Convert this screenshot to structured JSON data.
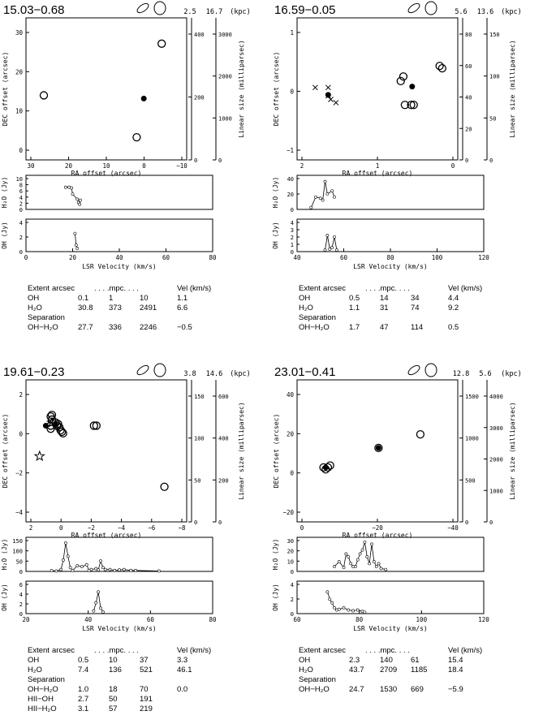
{
  "panels": [
    {
      "id": "p1",
      "title": "15.03−0.68",
      "dist": [
        "2.5",
        "16.7"
      ],
      "dist_unit": "(kpc)",
      "sky": {
        "xlabel": "RA offset (arcsec)",
        "ylabel": "DEC offset (arcsec)",
        "xlim": [
          30,
          -15
        ],
        "ylim": [
          -7,
          37
        ],
        "xticks": [
          "30",
          "20",
          "10",
          "0",
          "−10"
        ],
        "yticks": [
          "0",
          "10",
          "20",
          "30"
        ],
        "lin_label": "Linear size (milliparsec)",
        "lin_ticks_a": [
          "0",
          "200",
          "400"
        ],
        "lin_ticks_b": [
          "0",
          "1000",
          "2000",
          "3000"
        ]
      },
      "h2o_lab": "H₂O (Jy)",
      "oh_lab": "OH (Jy)",
      "vlabel": "LSR Velocity (km/s)",
      "vticks": [
        "0",
        "20",
        "40",
        "60",
        "80"
      ],
      "h2o_yt": [
        "0",
        "2",
        "4",
        "6",
        "8",
        "10"
      ],
      "oh_yt": [
        "0",
        "2",
        "4"
      ],
      "table": {
        "extent": "Extent",
        "h_arc": "arcsec",
        "h_mpc": ". . . .mpc. . . .",
        "h_vel": "Vel (km/s)",
        "rows": [
          [
            "OH",
            "0.1",
            "1",
            "10",
            "1.1"
          ],
          [
            "H₂O",
            "30.8",
            "373",
            "2491",
            "6.6"
          ]
        ],
        "sep": "Separation",
        "sep_rows": [
          [
            "OH−H₂O",
            "27.7",
            "336",
            "2246",
            "−0.5"
          ]
        ]
      }
    },
    {
      "id": "p2",
      "title": "16.59−0.05",
      "dist": [
        "5.6",
        "13.6"
      ],
      "dist_unit": "(kpc)",
      "sky": {
        "xlabel": "RA offset (arcsec)",
        "ylabel": "DEC offset (arcsec)",
        "xlim": [
          2.2,
          -0.9
        ],
        "ylim": [
          -1.2,
          1.9
        ],
        "xticks": [
          "2",
          "1",
          "0"
        ],
        "yticks": [
          "−1",
          "0",
          "1"
        ],
        "lin_label": "Linear size (milliparsec)",
        "lin_ticks_a": [
          "0",
          "20",
          "40",
          "60",
          "80"
        ],
        "lin_ticks_b": [
          "0",
          "50",
          "100",
          "150"
        ]
      },
      "h2o_lab": "H₂O (Jy)",
      "oh_lab": "OH (Jy)",
      "vlabel": "LSR Velocity (km/s)",
      "vticks": [
        "40",
        "60",
        "80",
        "100",
        "120"
      ],
      "h2o_yt": [
        "0",
        "20",
        "40"
      ],
      "oh_yt": [
        "0",
        "1",
        "2",
        "3",
        "4"
      ],
      "table": {
        "extent": "Extent",
        "h_arc": "arcsec",
        "h_mpc": ". . . .mpc. . . .",
        "h_vel": "Vel (km/s)",
        "rows": [
          [
            "OH",
            "0.5",
            "14",
            "34",
            "4.4"
          ],
          [
            "H₂O",
            "1.1",
            "31",
            "74",
            "9.2"
          ]
        ],
        "sep": "Separation",
        "sep_rows": [
          [
            "OH−H₂O",
            "1.7",
            "47",
            "114",
            "0.5"
          ]
        ]
      }
    },
    {
      "id": "p3",
      "title": "19.61−0.23",
      "dist": [
        "3.8",
        "14.6"
      ],
      "dist_unit": "(kpc)",
      "sky": {
        "xlabel": "RA offset (arcsec)",
        "ylabel": "DEC offset (arcsec)",
        "xlim": [
          3,
          -10
        ],
        "ylim": [
          -5.8,
          3.5
        ],
        "xticks": [
          "2",
          "0",
          "−2",
          "−4",
          "−6",
          "−8"
        ],
        "yticks": [
          "−4",
          "−2",
          "0",
          "2"
        ],
        "lin_label": "Linear size (milliparsec)",
        "lin_ticks_a": [
          "0",
          "50",
          "100",
          "150"
        ],
        "lin_ticks_b": [
          "0",
          "200",
          "400",
          "600"
        ]
      },
      "h2o_lab": "H₂O (Jy)",
      "oh_lab": "OH (Jy)",
      "vlabel": "LSR Velocity (km/s)",
      "vticks": [
        "20",
        "40",
        "60",
        "80"
      ],
      "h2o_yt": [
        "0",
        "50",
        "100",
        "150"
      ],
      "oh_yt": [
        "0",
        "2",
        "4",
        "6"
      ],
      "table": {
        "extent": "Extent",
        "h_arc": "arcsec",
        "h_mpc": ". . . .mpc. . . .",
        "h_vel": "Vel (km/s)",
        "rows": [
          [
            "OH",
            "0.5",
            "10",
            "37",
            "3.3"
          ],
          [
            "H₂O",
            "7.4",
            "136",
            "521",
            "46.1"
          ]
        ],
        "sep": "Separation",
        "sep_rows": [
          [
            "OH−H₂O",
            "1.0",
            "18",
            "70",
            "0.0"
          ],
          [
            "HII−OH",
            "2.7",
            "50",
            "191",
            ""
          ],
          [
            "HII−H₂O",
            "3.1",
            "57",
            "219",
            ""
          ]
        ]
      }
    },
    {
      "id": "p4",
      "title": "23.01−0.41",
      "dist": [
        "12.8",
        "5.6"
      ],
      "dist_unit": "(kpc)",
      "sky": {
        "xlabel": "RA offset (arcsec)",
        "ylabel": "DEC offset (arcsec)",
        "xlim": [
          13,
          -60
        ],
        "ylim": [
          -27,
          46
        ],
        "xticks": [
          "0",
          "−20",
          "−40"
        ],
        "yticks": [
          "−20",
          "0",
          "20",
          "40"
        ],
        "lin_label": "Linear size (milliparsec)",
        "lin_ticks_a": [
          "0",
          "500",
          "1000",
          "1500"
        ],
        "lin_ticks_b": [
          "0",
          "1000",
          "2000",
          "3000",
          "4000"
        ]
      },
      "h2o_lab": "H₂O (Jy)",
      "oh_lab": "OH (Jy)",
      "vlabel": "LSR Velocity (km/s)",
      "vticks": [
        "60",
        "80",
        "100",
        "120"
      ],
      "h2o_yt": [
        "0",
        "10",
        "20",
        "30"
      ],
      "oh_yt": [
        "0",
        "2",
        "4"
      ],
      "table": {
        "extent": "Extent",
        "h_arc": "arcsec",
        "h_mpc": ". . . .mpc. . . .",
        "h_vel": "Vel (km/s)",
        "rows": [
          [
            "OH",
            "2.3",
            "140",
            "61",
            "15.4"
          ],
          [
            "H₂O",
            "43.7",
            "2709",
            "1185",
            "18.4"
          ]
        ],
        "sep": "Separation",
        "sep_rows": [
          [
            "OH−H₂O",
            "24.7",
            "1530",
            "669",
            "−5.9"
          ]
        ]
      }
    }
  ],
  "chart_data": [
    {
      "type": "scatter",
      "name": "15.03−0.68",
      "sky_h2o": [
        [
          -1,
          0
        ],
        [
          -8,
          29
        ],
        [
          25,
          13
        ]
      ],
      "sky_oh": [
        [
          -3,
          12
        ]
      ],
      "vlim": [
        0,
        80
      ],
      "h2o": {
        "x": [
          17,
          18.5,
          19.5,
          20,
          22,
          22.5,
          23,
          23.3
        ],
        "y": [
          6.5,
          6.5,
          6.3,
          4.5,
          3,
          2,
          1.5,
          2.7
        ],
        "ylim": [
          0,
          10
        ]
      },
      "oh": {
        "x": [
          21,
          21.5,
          22
        ],
        "y": [
          2.8,
          1,
          0.5
        ],
        "ylim": [
          0,
          5
        ]
      }
    },
    {
      "type": "scatter",
      "name": "16.59−0.05",
      "sky_h2o": [
        [
          0.15,
          0.62
        ],
        [
          0.2,
          0.52
        ],
        [
          0.12,
          0
        ],
        [
          0.0,
          0
        ],
        [
          -0.05,
          0
        ],
        [
          -0.6,
          0.8
        ],
        [
          -0.55,
          0.85
        ]
      ],
      "sky_oh": [
        [
          1.6,
          0.22
        ],
        [
          -0.02,
          0.4
        ]
      ],
      "sky_x": [
        [
          1.85,
          0.38
        ],
        [
          1.6,
          0.38
        ],
        [
          1.55,
          0.12
        ],
        [
          1.45,
          0.05
        ],
        [
          1.6,
          0.2
        ]
      ],
      "vlim": [
        40,
        120
      ],
      "h2o": {
        "x": [
          46,
          48,
          50,
          51,
          52,
          53,
          55,
          56
        ],
        "y": [
          3,
          20,
          18,
          15,
          45,
          25,
          30,
          20
        ],
        "ylim": [
          0,
          55
        ]
      },
      "oh": {
        "x": [
          52,
          53,
          54,
          55,
          56,
          57
        ],
        "y": [
          0.2,
          2,
          0.3,
          0.5,
          1.8,
          0.2
        ],
        "ylim": [
          0,
          4
        ]
      }
    },
    {
      "type": "scatter",
      "name": "19.61−0.23",
      "sky_h2o": [
        [
          0.5,
          0.5
        ],
        [
          0.1,
          0.1
        ],
        [
          0,
          0
        ],
        [
          0.2,
          0.2
        ],
        [
          0.3,
          0.4
        ],
        [
          0.4,
          0.6
        ],
        [
          0.6,
          0.7
        ],
        [
          0.9,
          0.9
        ],
        [
          1,
          1.1
        ],
        [
          0.9,
          1.2
        ],
        [
          1,
          0.5
        ],
        [
          1,
          0.3
        ],
        [
          -2.7,
          0.5
        ],
        [
          -2.5,
          0.5
        ],
        [
          -8.2,
          -3.5
        ]
      ],
      "sky_oh": [
        [
          0.6,
          0.55
        ],
        [
          1.4,
          0.5
        ]
      ],
      "sky_star": [
        [
          1.9,
          -1.5
        ],
        [
          0.9,
          0.7
        ]
      ],
      "vlim": [
        10,
        90
      ],
      "h2o": {
        "x": [
          21,
          23,
          25,
          26,
          27,
          28,
          29,
          30,
          32,
          34,
          36,
          37,
          38,
          40,
          41,
          42,
          43,
          44,
          46,
          48,
          50,
          52,
          55,
          57,
          67
        ],
        "y": [
          4,
          2,
          10,
          60,
          150,
          80,
          20,
          5,
          30,
          25,
          35,
          5,
          10,
          15,
          8,
          55,
          20,
          10,
          10,
          5,
          8,
          10,
          5,
          5,
          2
        ],
        "ylim": [
          0,
          180
        ]
      },
      "oh": {
        "x": [
          39,
          40,
          41,
          42,
          43
        ],
        "y": [
          0.5,
          2,
          4,
          1,
          0.3
        ],
        "ylim": [
          0,
          6
        ]
      }
    },
    {
      "type": "scatter",
      "name": "23.01−0.41",
      "sky_h2o": [
        [
          0,
          0
        ],
        [
          1,
          1
        ],
        [
          -1,
          1
        ],
        [
          -2,
          2
        ],
        [
          -24,
          11
        ],
        [
          -43,
          18
        ]
      ],
      "sky_oh": [
        [
          -24,
          11
        ],
        [
          0,
          1
        ]
      ],
      "vlim": [
        50,
        130
      ],
      "h2o": {
        "x": [
          66,
          68,
          70,
          71,
          72,
          73,
          74,
          75,
          76,
          77,
          78,
          79,
          80,
          81,
          82,
          83,
          84,
          85,
          86,
          88
        ],
        "y": [
          5,
          10,
          4,
          18,
          15,
          8,
          5,
          5,
          12,
          18,
          22,
          30,
          15,
          8,
          28,
          10,
          5,
          8,
          3,
          2
        ],
        "ylim": [
          0,
          35
        ]
      },
      "oh": {
        "x": [
          63,
          64,
          65,
          66,
          67,
          68,
          70,
          72,
          74,
          76,
          78,
          79
        ],
        "y": [
          3,
          2,
          1.5,
          0.8,
          0.5,
          0.6,
          0.8,
          0.5,
          0.4,
          0.5,
          0.3,
          0.2
        ],
        "ylim": [
          0,
          4.5
        ]
      }
    }
  ]
}
